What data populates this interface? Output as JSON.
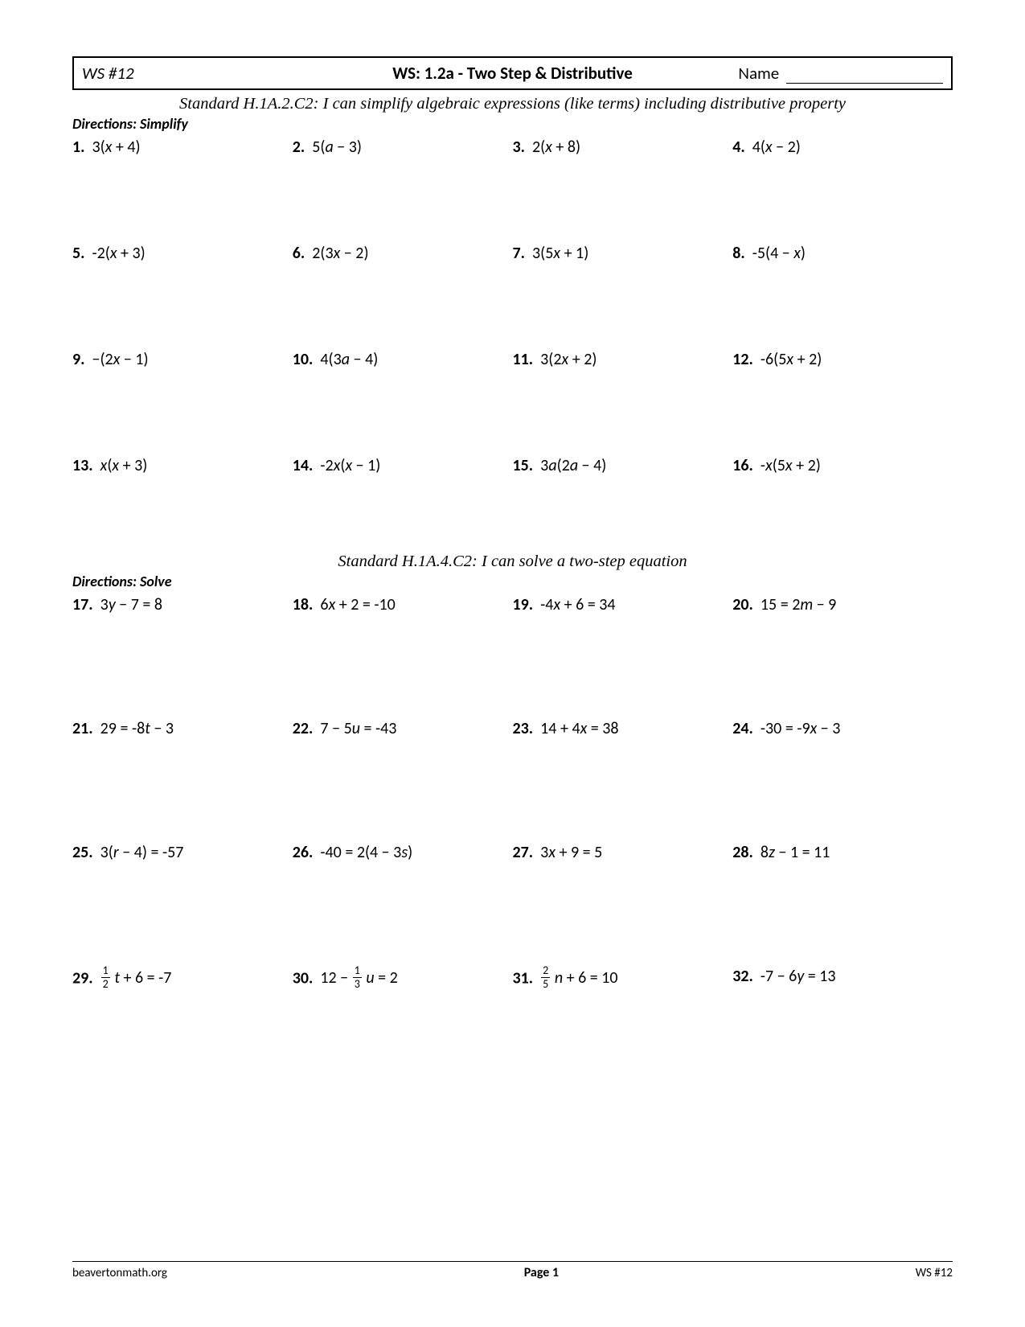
{
  "header": {
    "ws_number": "WS #12",
    "title": "WS: 1.2a - Two Step & Distributive",
    "name_label": "Name"
  },
  "section1": {
    "standard": "Standard H.1A.2.C2: I can simplify algebraic expressions (like terms) including distributive property",
    "directions": "Directions:  Simplify",
    "problems": [
      {
        "n": "1.",
        "expr": "3(<i>x</i> + 4)"
      },
      {
        "n": "2.",
        "expr": "5(<i>a</i> − 3)"
      },
      {
        "n": "3.",
        "expr": "2(<i>x</i> + 8)"
      },
      {
        "n": "4.",
        "expr": "4(<i>x</i> − 2)"
      },
      {
        "n": "5.",
        "expr": "-2(<i>x</i> + 3)"
      },
      {
        "n": "6.",
        "expr": "2(3<i>x</i> − 2)"
      },
      {
        "n": "7.",
        "expr": "3(5<i>x</i> + 1)"
      },
      {
        "n": "8.",
        "expr": "-5(4 − <i>x</i>)"
      },
      {
        "n": "9.",
        "expr": "−(2<i>x</i> − 1)"
      },
      {
        "n": "10.",
        "expr": "4(3<i>a</i> − 4)"
      },
      {
        "n": "11.",
        "expr": "3(2<i>x</i> + 2)"
      },
      {
        "n": "12.",
        "expr": "-6(5<i>x</i> + 2)"
      },
      {
        "n": "13.",
        "expr": "<i>x</i>(<i>x</i> + 3)"
      },
      {
        "n": "14.",
        "expr": "-2<i>x</i>(<i>x</i> − 1)"
      },
      {
        "n": "15.",
        "expr": "3<i>a</i>(2<i>a</i> − 4)"
      },
      {
        "n": "16.",
        "expr": "-<i>x</i>(5<i>x</i> + 2)"
      }
    ]
  },
  "section2": {
    "standard": "Standard H.1A.4.C2: I can solve a two-step equation",
    "directions": "Directions:  Solve",
    "problems": [
      {
        "n": "17.",
        "expr": "3<i>y</i> − 7 = 8"
      },
      {
        "n": "18.",
        "expr": "6<i>x</i> + 2 = -10"
      },
      {
        "n": "19.",
        "expr": "-4<i>x</i> + 6 = 34"
      },
      {
        "n": "20.",
        "expr": "15 = 2<i>m</i> − 9"
      },
      {
        "n": "21.",
        "expr": "29 = -8<i>t</i> − 3"
      },
      {
        "n": "22.",
        "expr": "7 − 5<i>u</i> = -43"
      },
      {
        "n": "23.",
        "expr": "14 + 4<i>x</i> = 38"
      },
      {
        "n": "24.",
        "expr": "-30 = -9<i>x</i> − 3"
      },
      {
        "n": "25.",
        "expr": "3(<i>r</i> − 4) = -57"
      },
      {
        "n": "26.",
        "expr": "-40 = 2(4 − 3<i>s</i>)"
      },
      {
        "n": "27.",
        "expr": "3<i>x</i> + 9 = 5"
      },
      {
        "n": "28.",
        "expr": "8<i>z</i> − 1 = 11"
      },
      {
        "n": "29.",
        "expr": "<span class=\"frac\"><span class=\"num\">1</span><span class=\"den\">2</span></span> <i>t</i> + 6 = -7"
      },
      {
        "n": "30.",
        "expr": "12 − <span class=\"frac\"><span class=\"num\">1</span><span class=\"den\">3</span></span> <i>u</i> = 2"
      },
      {
        "n": "31.",
        "expr": "<span class=\"frac\"><span class=\"num\">2</span><span class=\"den\">5</span></span> <i>n</i> + 6 = 10"
      },
      {
        "n": "32.",
        "expr": "-7 − 6<i>y</i> = 13"
      }
    ]
  },
  "footer": {
    "left": "beavertonmath.org",
    "center_label": "Page",
    "center_num": "1",
    "right": "WS #12"
  }
}
